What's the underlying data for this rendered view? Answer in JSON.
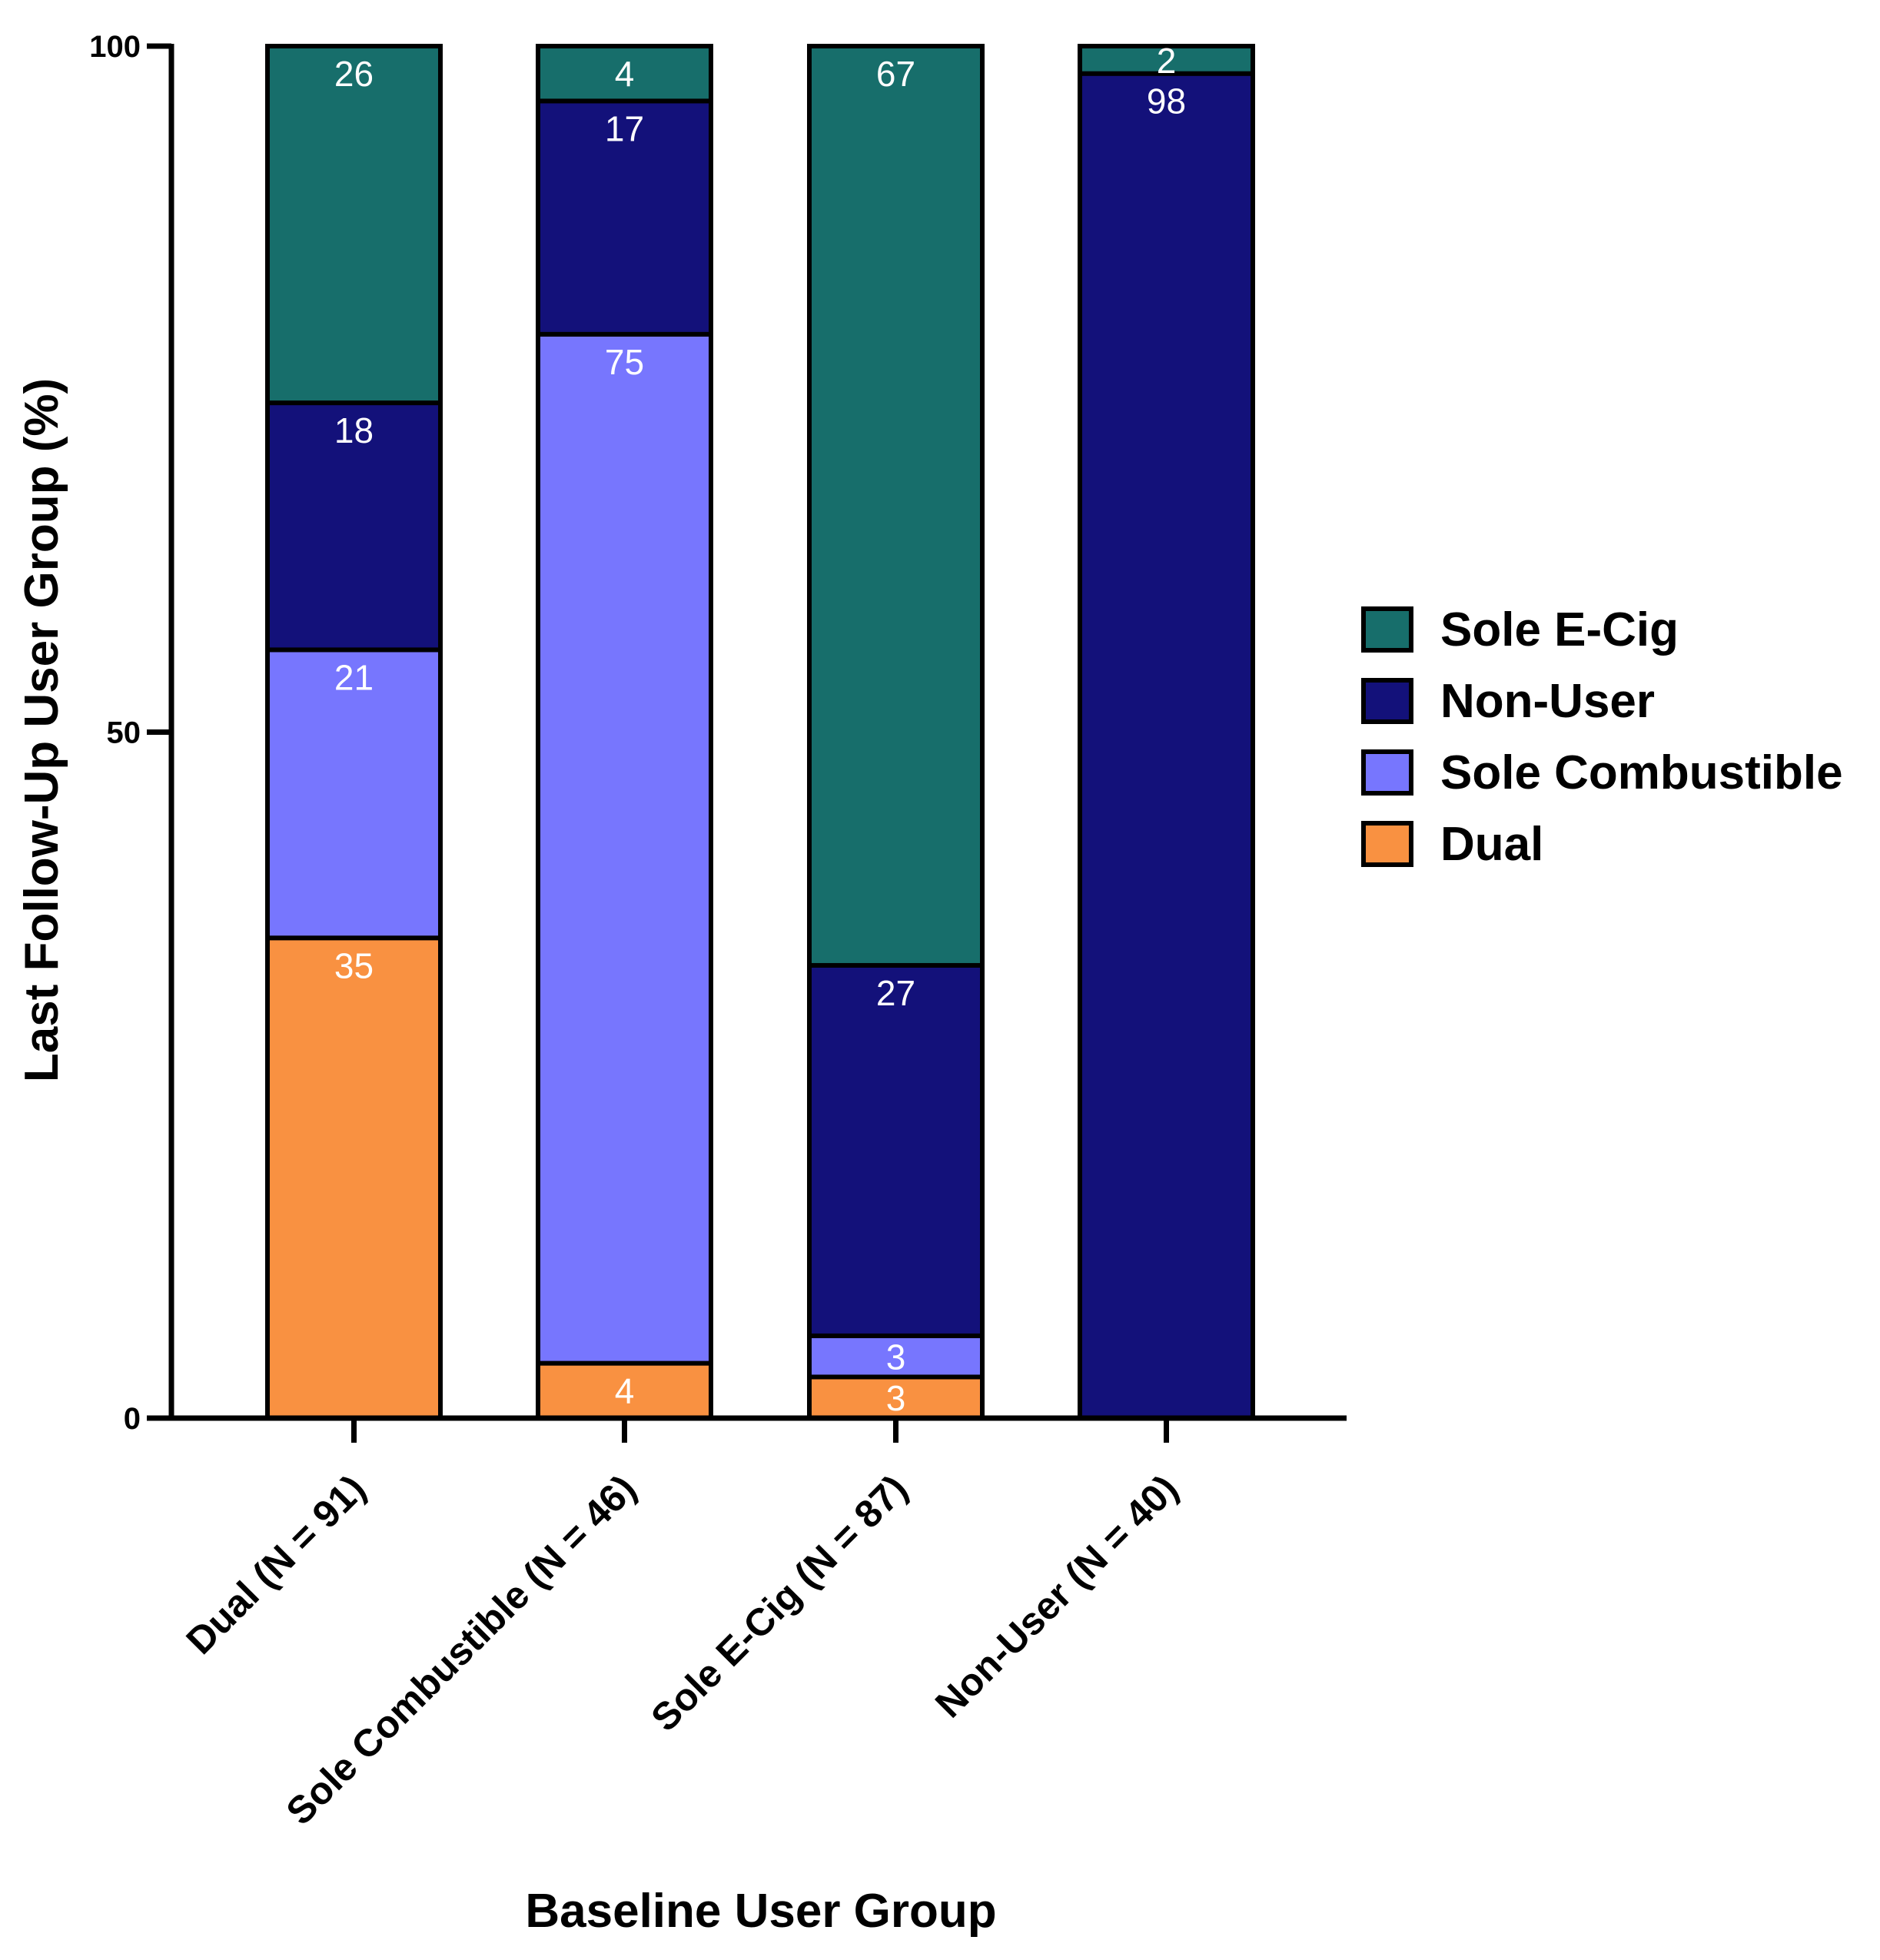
{
  "chart_data": {
    "type": "bar",
    "stacked": true,
    "categories": [
      "Dual (N = 91)",
      "Sole Combustible (N = 46)",
      "Sole E-Cig (N = 87)",
      "Non-User (N = 40)"
    ],
    "series": [
      {
        "name": "Dual",
        "color": "#f99141",
        "values": [
          35,
          4,
          3,
          0
        ],
        "labels": [
          "35",
          "4",
          "3",
          ""
        ]
      },
      {
        "name": "Sole Combustible",
        "color": "#7776fe",
        "values": [
          21,
          75,
          3,
          0
        ],
        "labels": [
          "21",
          "75",
          "3",
          ""
        ]
      },
      {
        "name": "Non-User",
        "color": "#13117a",
        "values": [
          18,
          17,
          27,
          98
        ],
        "labels": [
          "18",
          "17",
          "27",
          "98"
        ]
      },
      {
        "name": "Sole E-Cig",
        "color": "#176e6b",
        "values": [
          26,
          4,
          67,
          2
        ],
        "labels": [
          "26",
          "4",
          "67",
          "2"
        ]
      }
    ],
    "legend_order": [
      "Sole E-Cig",
      "Non-User",
      "Sole Combustible",
      "Dual"
    ],
    "legend_position": "right",
    "ylim": [
      0,
      100
    ],
    "yticks": [
      "0",
      "50",
      "100"
    ],
    "xlabel": "Baseline User Group",
    "ylabel": "Last Follow-Up User Group (%)",
    "grid": false
  }
}
